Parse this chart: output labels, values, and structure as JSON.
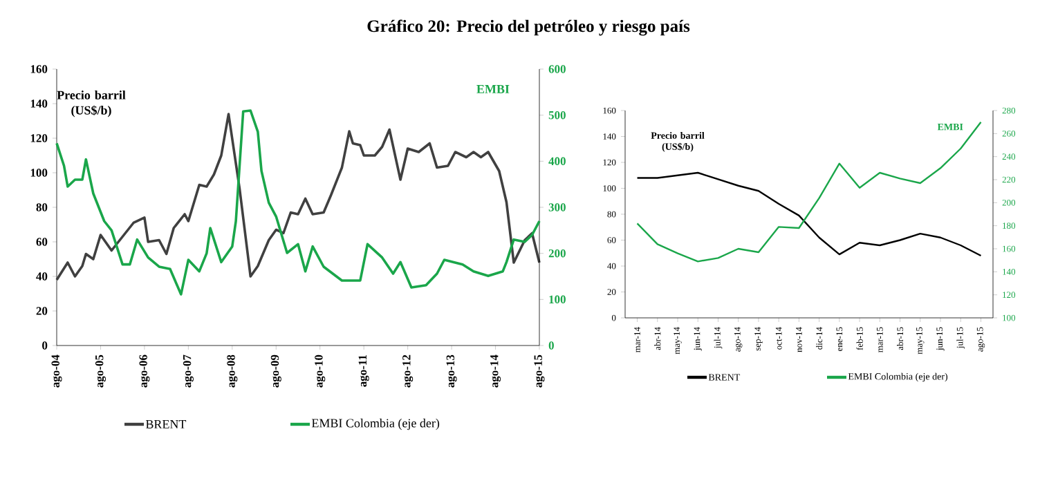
{
  "chart_data": [
    {
      "type": "line",
      "title": "Gráfico 20: Precio del petróleo y riesgo país",
      "ylabel": "Precio barril (US$/b)",
      "y2label": "EMBI",
      "xlim": [
        "2004-08",
        "2015-08"
      ],
      "xticks": [
        {
          "value": "2004-08",
          "label": "ago-04"
        },
        {
          "value": "2005-08",
          "label": "ago-05"
        },
        {
          "value": "2006-08",
          "label": "ago-06"
        },
        {
          "value": "2007-08",
          "label": "ago-07"
        },
        {
          "value": "2008-08",
          "label": "ago-08"
        },
        {
          "value": "2009-08",
          "label": "ago-09"
        },
        {
          "value": "2010-08",
          "label": "ago-10"
        },
        {
          "value": "2011-08",
          "label": "ago-11"
        },
        {
          "value": "2012-08",
          "label": "ago-12"
        },
        {
          "value": "2013-08",
          "label": "ago-13"
        },
        {
          "value": "2014-08",
          "label": "ago-14"
        },
        {
          "value": "2015-08",
          "label": "ago-15"
        }
      ],
      "ylim": [
        0,
        160
      ],
      "yticks": [
        0,
        20,
        40,
        60,
        80,
        100,
        120,
        140,
        160
      ],
      "y2lim": [
        0,
        600
      ],
      "y2ticks": [
        0,
        100,
        200,
        300,
        400,
        500,
        600
      ],
      "legend": "bottom",
      "series": [
        {
          "name": "BRENT",
          "color": "#404040",
          "x": [
            "2004-08",
            "2004-11",
            "2005-01",
            "2005-03",
            "2005-04",
            "2005-06",
            "2005-08",
            "2005-11",
            "2006-02",
            "2006-05",
            "2006-08",
            "2006-09",
            "2006-12",
            "2007-02",
            "2007-04",
            "2007-07",
            "2007-08",
            "2007-11",
            "2008-01",
            "2008-03",
            "2008-05",
            "2008-07",
            "2008-10",
            "2009-01",
            "2009-03",
            "2009-06",
            "2009-08",
            "2009-10",
            "2009-12",
            "2010-02",
            "2010-04",
            "2010-06",
            "2010-09",
            "2010-11",
            "2011-02",
            "2011-04",
            "2011-05",
            "2011-07",
            "2011-08",
            "2011-11",
            "2012-01",
            "2012-03",
            "2012-06",
            "2012-08",
            "2012-11",
            "2013-02",
            "2013-04",
            "2013-07",
            "2013-09",
            "2013-12",
            "2014-02",
            "2014-04",
            "2014-06",
            "2014-09",
            "2014-11",
            "2015-01",
            "2015-04",
            "2015-06",
            "2015-08"
          ],
          "values": [
            38,
            48,
            40,
            46,
            53,
            50,
            64,
            55,
            63,
            71,
            74,
            60,
            61,
            53,
            68,
            76,
            72,
            93,
            92,
            99,
            110,
            134,
            91,
            40,
            46,
            61,
            67,
            65,
            77,
            76,
            85,
            76,
            77,
            87,
            103,
            124,
            117,
            116,
            110,
            110,
            115,
            125,
            96,
            114,
            112,
            117,
            103,
            104,
            112,
            109,
            112,
            109,
            112,
            101,
            83,
            48,
            61,
            65,
            48
          ]
        },
        {
          "name": "EMBI Colombia (eje der)",
          "color": "#1aa64a",
          "axis": "y2",
          "x": [
            "2004-08",
            "2004-10",
            "2004-11",
            "2005-01",
            "2005-03",
            "2005-04",
            "2005-06",
            "2005-09",
            "2005-11",
            "2006-02",
            "2006-04",
            "2006-06",
            "2006-09",
            "2006-12",
            "2007-03",
            "2007-06",
            "2007-08",
            "2007-11",
            "2008-01",
            "2008-02",
            "2008-05",
            "2008-08",
            "2008-09",
            "2008-11",
            "2009-01",
            "2009-03",
            "2009-04",
            "2009-06",
            "2009-08",
            "2009-11",
            "2010-02",
            "2010-04",
            "2010-06",
            "2010-09",
            "2011-02",
            "2011-07",
            "2011-09",
            "2012-01",
            "2012-04",
            "2012-06",
            "2012-09",
            "2013-01",
            "2013-04",
            "2013-06",
            "2013-11",
            "2014-02",
            "2014-06",
            "2014-10",
            "2014-11",
            "2015-01",
            "2015-04",
            "2015-06",
            "2015-08"
          ],
          "values": [
            439,
            390,
            345,
            360,
            360,
            404,
            330,
            270,
            250,
            176,
            176,
            230,
            191,
            171,
            166,
            111,
            186,
            161,
            200,
            255,
            181,
            215,
            270,
            508,
            510,
            464,
            379,
            310,
            280,
            201,
            220,
            161,
            215,
            171,
            141,
            141,
            220,
            191,
            156,
            181,
            126,
            131,
            156,
            186,
            176,
            161,
            151,
            161,
            181,
            230,
            225,
            240,
            270
          ]
        }
      ]
    },
    {
      "type": "line",
      "ylabel": "Precio barril (US$/b)",
      "y2label": "EMBI",
      "categories": [
        "mar-14",
        "abr-14",
        "may-14",
        "jun-14",
        "jul-14",
        "ago-14",
        "sep-14",
        "oct-14",
        "nov-14",
        "dic-14",
        "ene-15",
        "feb-15",
        "mar-15",
        "abr-15",
        "may-15",
        "jun-15",
        "jul-15",
        "ago-15"
      ],
      "ylim": [
        0,
        160
      ],
      "yticks": [
        0,
        20,
        40,
        60,
        80,
        100,
        120,
        140,
        160
      ],
      "y2lim": [
        100,
        280
      ],
      "y2ticks": [
        100,
        120,
        140,
        160,
        180,
        200,
        220,
        240,
        260,
        280
      ],
      "legend": "bottom",
      "series": [
        {
          "name": "BRENT",
          "color": "#000000",
          "values": [
            108,
            108,
            110,
            112,
            107,
            102,
            98,
            88,
            79,
            62,
            49,
            58,
            56,
            60,
            65,
            62,
            56,
            48
          ]
        },
        {
          "name": "EMBI Colombia (eje der)",
          "color": "#1aa64a",
          "axis": "y2",
          "values": [
            182,
            164,
            156,
            149,
            152,
            160,
            157,
            179,
            178,
            204,
            234,
            213,
            226,
            221,
            217,
            230,
            247,
            270
          ]
        }
      ]
    }
  ]
}
